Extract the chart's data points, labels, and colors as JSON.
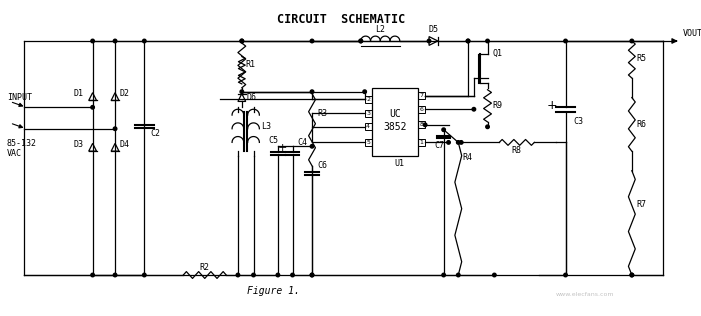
{
  "title": "CIRCUIT  SCHEMATIC",
  "figure_label": "Figure 1.",
  "background_color": "#ffffff",
  "line_color": "#000000",
  "title_fontsize": 8.5,
  "label_fontsize": 6,
  "watermark": "www.elecfans.com"
}
